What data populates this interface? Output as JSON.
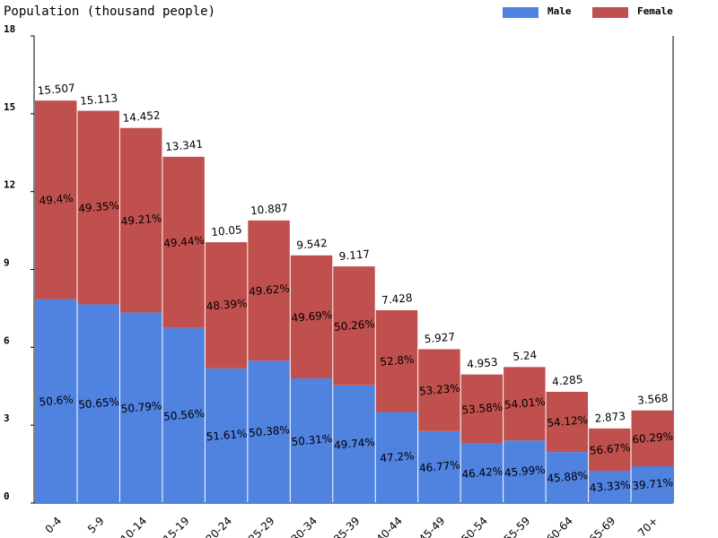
{
  "chart_data": {
    "type": "stacked_bar",
    "title": "Population (thousand people)",
    "categories": [
      "0-4",
      "5-9",
      "10-14",
      "15-19",
      "20-24",
      "25-29",
      "30-34",
      "35-39",
      "40-44",
      "45-49",
      "50-54",
      "55-59",
      "60-64",
      "65-69",
      "70+"
    ],
    "series": [
      {
        "name": "Male",
        "color": "#5082e0",
        "values": [
          7.847,
          7.655,
          7.34,
          6.745,
          5.187,
          5.485,
          4.801,
          4.535,
          3.506,
          2.772,
          2.299,
          2.41,
          1.966,
          1.245,
          1.417
        ],
        "share_labels": [
          "50.6%",
          "50.65%",
          "50.79%",
          "50.56%",
          "51.61%",
          "50.38%",
          "50.31%",
          "49.74%",
          "47.2%",
          "46.77%",
          "46.42%",
          "45.99%",
          "45.88%",
          "43.33%",
          "39.71%"
        ]
      },
      {
        "name": "Female",
        "color": "#c0504d",
        "values": [
          7.66,
          7.458,
          7.112,
          6.596,
          4.863,
          5.402,
          4.741,
          4.582,
          3.922,
          3.155,
          2.654,
          2.83,
          2.319,
          1.628,
          2.151
        ],
        "share_labels": [
          "49.4%",
          "49.35%",
          "49.21%",
          "49.44%",
          "48.39%",
          "49.62%",
          "49.69%",
          "50.26%",
          "52.8%",
          "53.23%",
          "53.58%",
          "54.01%",
          "54.12%",
          "56.67%",
          "60.29%"
        ]
      }
    ],
    "totals": [
      15.507,
      15.113,
      14.452,
      13.341,
      10.05,
      10.887,
      9.542,
      9.117,
      7.428,
      5.927,
      4.953,
      5.24,
      4.285,
      2.873,
      3.568
    ],
    "ylim": [
      0,
      18
    ],
    "yticks": [
      0,
      3,
      6,
      9,
      12,
      15,
      18
    ],
    "legend": "top-right"
  }
}
